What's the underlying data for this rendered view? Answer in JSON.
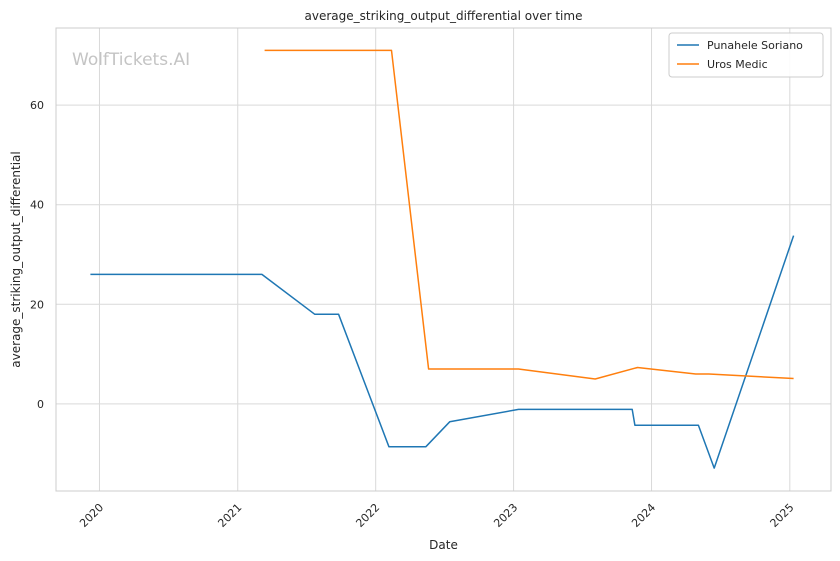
{
  "chart_data": {
    "type": "line",
    "title": "average_striking_output_differential over time",
    "xlabel": "Date",
    "ylabel": "average_striking_output_differential",
    "watermark": "WolfTickets.AI",
    "xlim": [
      "2019-09-08",
      "2025-04-20"
    ],
    "ylim": [
      -17.5,
      75.5
    ],
    "x_ticks": [
      "2020-01-01",
      "2021-01-01",
      "2022-01-01",
      "2023-01-01",
      "2024-01-01",
      "2025-01-01"
    ],
    "x_tick_labels": [
      "2020",
      "2021",
      "2022",
      "2023",
      "2024",
      "2025"
    ],
    "y_ticks": [
      0,
      20,
      40,
      60
    ],
    "y_tick_labels": [
      "0",
      "20",
      "40",
      "60"
    ],
    "grid": true,
    "legend_position": "top-right",
    "series": [
      {
        "name": "Punahele Soriano",
        "color": "#1f77b4",
        "points": [
          {
            "x": "2019-12-08",
            "y": 26.0
          },
          {
            "x": "2021-03-06",
            "y": 26.0
          },
          {
            "x": "2021-07-24",
            "y": 18.0
          },
          {
            "x": "2021-09-25",
            "y": 18.0
          },
          {
            "x": "2022-02-05",
            "y": -8.6
          },
          {
            "x": "2022-05-14",
            "y": -8.6
          },
          {
            "x": "2022-07-16",
            "y": -3.6
          },
          {
            "x": "2023-01-14",
            "y": -1.1
          },
          {
            "x": "2023-11-11",
            "y": -1.1
          },
          {
            "x": "2023-11-18",
            "y": -4.3
          },
          {
            "x": "2024-05-04",
            "y": -4.3
          },
          {
            "x": "2024-06-15",
            "y": -12.9
          },
          {
            "x": "2025-01-11",
            "y": 33.8
          }
        ]
      },
      {
        "name": "Uros Medic",
        "color": "#ff7f0e",
        "points": [
          {
            "x": "2021-03-13",
            "y": 71.0
          },
          {
            "x": "2022-02-12",
            "y": 71.0
          },
          {
            "x": "2022-05-21",
            "y": 7.0
          },
          {
            "x": "2023-01-14",
            "y": 7.0
          },
          {
            "x": "2023-08-05",
            "y": 5.0
          },
          {
            "x": "2023-11-25",
            "y": 7.3
          },
          {
            "x": "2024-04-27",
            "y": 6.0
          },
          {
            "x": "2024-06-01",
            "y": 6.0
          },
          {
            "x": "2025-01-11",
            "y": 5.1
          }
        ]
      }
    ]
  }
}
